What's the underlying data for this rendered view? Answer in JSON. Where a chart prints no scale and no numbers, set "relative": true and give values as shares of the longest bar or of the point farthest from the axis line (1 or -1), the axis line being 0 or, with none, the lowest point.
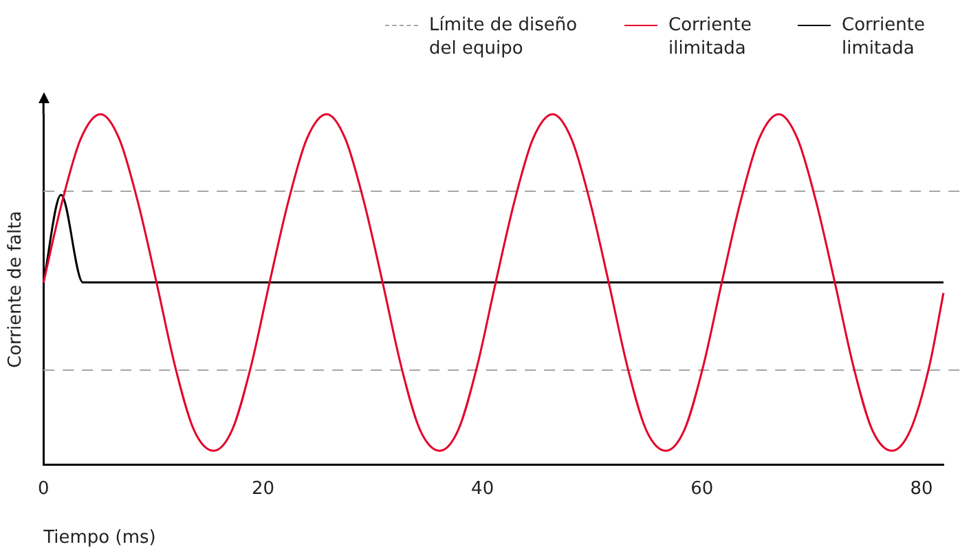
{
  "chart_data": {
    "type": "line",
    "relative": true,
    "xlabel": "Tiempo (ms)",
    "ylabel": "Corriente de falta",
    "xlim": [
      0,
      82
    ],
    "xticks": [
      0,
      20,
      40,
      60,
      80
    ],
    "grid": false,
    "legend": "top right",
    "marker": "none",
    "line_style": "solid",
    "ref_lines": [
      {
        "axis": "y",
        "value": 0.78,
        "label": "Límite de diseño del equipo",
        "color": "#a6a6a6",
        "line_style": "dashed"
      },
      {
        "axis": "y",
        "value": 0.27,
        "color": "#a6a6a6",
        "line_style": "dashed"
      }
    ],
    "series": [
      {
        "name": "Corriente ilimitada",
        "color": "#e4002b",
        "x": [
          0,
          1.7,
          3.4,
          5.2,
          6.9,
          8.6,
          10.3,
          12.0,
          13.7,
          15.5,
          17.2,
          18.9,
          20.6,
          22.3,
          24.0,
          25.8,
          27.5,
          29.2,
          30.9,
          32.6,
          34.3,
          36.1,
          37.8,
          39.5,
          41.2,
          42.9,
          44.6,
          46.4,
          48.1,
          49.8,
          51.5,
          53.2,
          54.9,
          56.7,
          58.4,
          60.1,
          61.8,
          63.5,
          65.2,
          67.0,
          68.7,
          70.4,
          72.1,
          73.8,
          75.5,
          77.3,
          79.0,
          80.7,
          82.0
        ],
        "values": [
          0.52,
          0.75,
          0.93,
          1,
          0.93,
          0.75,
          0.52,
          0.28,
          0.1,
          0.04,
          0.1,
          0.28,
          0.52,
          0.75,
          0.93,
          1,
          0.93,
          0.75,
          0.52,
          0.28,
          0.1,
          0.04,
          0.1,
          0.28,
          0.52,
          0.75,
          0.93,
          1,
          0.93,
          0.75,
          0.52,
          0.28,
          0.1,
          0.04,
          0.1,
          0.28,
          0.52,
          0.75,
          0.93,
          1,
          0.93,
          0.75,
          0.52,
          0.28,
          0.1,
          0.04,
          0.1,
          0.28,
          0.49
        ]
      },
      {
        "name": "Corriente limitada",
        "color": "#000000",
        "x": [
          0,
          1.6,
          3.6,
          82
        ],
        "values": [
          0.52,
          0.77,
          0.52,
          0.52
        ]
      }
    ]
  }
}
